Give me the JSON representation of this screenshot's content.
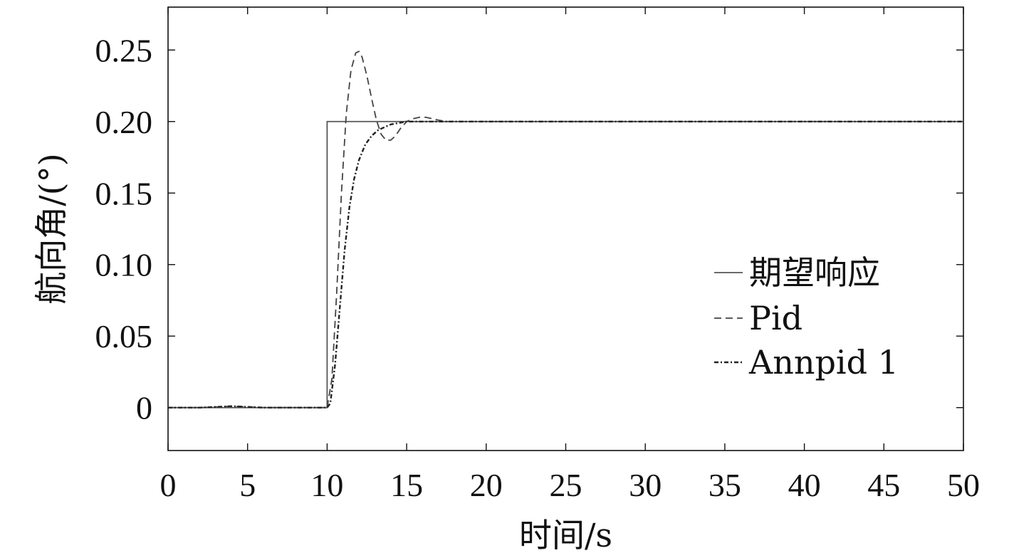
{
  "chart_data": {
    "type": "line",
    "title": "",
    "xlabel": "时间/s",
    "ylabel": "航向角/(°)",
    "xlim": [
      0,
      50
    ],
    "ylim": [
      -0.03,
      0.28
    ],
    "xticks": [
      0,
      5,
      10,
      15,
      20,
      25,
      30,
      35,
      40,
      45,
      50
    ],
    "xtick_labels": [
      "0",
      "5",
      "10",
      "15",
      "20",
      "25",
      "30",
      "35",
      "40",
      "45",
      "50"
    ],
    "yticks": [
      0,
      0.05,
      0.1,
      0.15,
      0.2,
      0.25
    ],
    "ytick_labels": [
      "0",
      "0.05",
      "0.10",
      "0.15",
      "0.20",
      "0.25"
    ],
    "grid": false,
    "legend_position": "right",
    "series": [
      {
        "name": "期望响应",
        "style": "solid",
        "color": "#555555",
        "x": [
          0,
          10,
          10,
          50
        ],
        "y": [
          0,
          0,
          0.2,
          0.2
        ]
      },
      {
        "name": "Pid",
        "style": "dashed",
        "color": "#444444",
        "x": [
          0,
          2,
          4,
          6,
          8,
          10,
          10.3,
          10.6,
          10.9,
          11.2,
          11.5,
          11.8,
          12.0,
          12.2,
          12.5,
          12.8,
          13.1,
          13.4,
          13.7,
          14.0,
          14.3,
          14.6,
          15.0,
          15.4,
          15.8,
          16.2,
          16.6,
          17.0,
          17.5,
          18.0,
          19.0,
          20.0,
          30.0,
          40.0,
          50.0
        ],
        "y": [
          0,
          0,
          0.001,
          0,
          0,
          0,
          0.02,
          0.08,
          0.15,
          0.205,
          0.236,
          0.248,
          0.249,
          0.245,
          0.232,
          0.216,
          0.201,
          0.191,
          0.187,
          0.187,
          0.19,
          0.195,
          0.2,
          0.202,
          0.203,
          0.203,
          0.202,
          0.201,
          0.2,
          0.2,
          0.2,
          0.2,
          0.2,
          0.2,
          0.2
        ]
      },
      {
        "name": "Annpid 1",
        "style": "dashdot",
        "color": "#222222",
        "x": [
          0,
          2,
          4,
          6,
          8,
          10,
          10.2,
          10.5,
          10.8,
          11.1,
          11.4,
          11.7,
          12.0,
          12.4,
          12.8,
          13.2,
          13.6,
          14.0,
          14.5,
          15.0,
          16.0,
          17.0,
          20.0,
          30.0,
          40.0,
          50.0
        ],
        "y": [
          0,
          0,
          0.001,
          0,
          0,
          0,
          0.003,
          0.03,
          0.07,
          0.11,
          0.14,
          0.16,
          0.173,
          0.184,
          0.19,
          0.194,
          0.196,
          0.198,
          0.199,
          0.2,
          0.2,
          0.2,
          0.2,
          0.2,
          0.2,
          0.2
        ]
      }
    ]
  }
}
